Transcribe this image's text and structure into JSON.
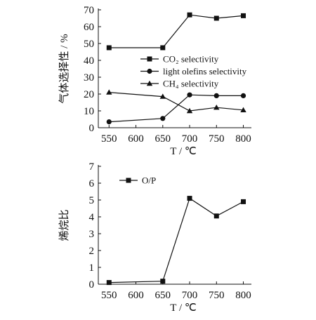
{
  "chart_data": [
    {
      "type": "line",
      "x": [
        550,
        600,
        650,
        700,
        750,
        800
      ],
      "xticks": [
        "550",
        "600",
        "650",
        "700",
        "750",
        "800"
      ],
      "yticks": [
        "0",
        "10",
        "20",
        "30",
        "40",
        "50",
        "60",
        "70"
      ],
      "xlim": [
        530,
        815
      ],
      "ylim": [
        0,
        70
      ],
      "xlabel": "T / ℃",
      "ylabel": "气体选择性 / %",
      "series": [
        {
          "name": "CO₂ selectivity",
          "marker": "square",
          "x": [
            550,
            650,
            700,
            750,
            800
          ],
          "values": [
            47.5,
            47.5,
            67,
            65,
            66.5
          ]
        },
        {
          "name": "light olefins selectivity",
          "marker": "circle",
          "x": [
            550,
            650,
            700,
            750,
            800
          ],
          "values": [
            3.5,
            5.5,
            19.5,
            19,
            19
          ]
        },
        {
          "name": "CH₄ selectivity",
          "marker": "triangle",
          "x": [
            550,
            650,
            700,
            750,
            800
          ],
          "values": [
            21,
            18.5,
            10,
            12,
            10.5
          ]
        }
      ],
      "legend_position": "center-right",
      "grid": false
    },
    {
      "type": "line",
      "x": [
        550,
        600,
        650,
        700,
        750,
        800
      ],
      "xticks": [
        "550",
        "600",
        "650",
        "700",
        "750",
        "800"
      ],
      "yticks": [
        "0",
        "1",
        "2",
        "3",
        "4",
        "5",
        "6",
        "7"
      ],
      "xlim": [
        530,
        815
      ],
      "ylim": [
        0,
        7
      ],
      "xlabel": "T / ℃",
      "ylabel": "烯烷比",
      "series": [
        {
          "name": "O/P",
          "marker": "square",
          "x": [
            550,
            650,
            700,
            750,
            800
          ],
          "values": [
            0.1,
            0.18,
            5.1,
            4.05,
            4.9
          ]
        }
      ],
      "legend_position": "top-left",
      "grid": false
    }
  ]
}
